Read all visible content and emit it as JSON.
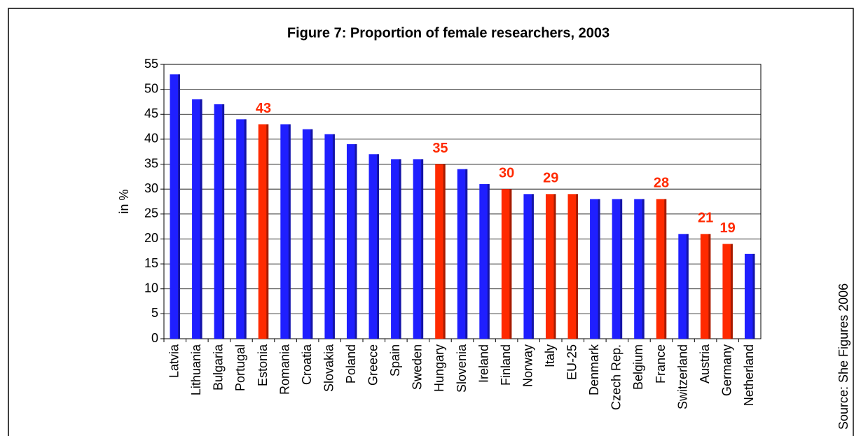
{
  "chart_data": {
    "type": "bar",
    "title": "Figure 7: Proportion of female researchers, 2003",
    "y_label": "in %",
    "source": "Source: She Figures 2006",
    "categories": [
      "Latvia",
      "Lithuania",
      "Bulgaria",
      "Portugal",
      "Estonia",
      "Romania",
      "Croatia",
      "Slovakia",
      "Poland",
      "Greece",
      "Spain",
      "Sweden",
      "Hungary",
      "Slovenia",
      "Ireland",
      "Finland",
      "Norway",
      "Italy",
      "EU-25",
      "Denmark",
      "Czech Rep.",
      "Belgium",
      "France",
      "Switzerland",
      "Austria",
      "Germany",
      "Netherland"
    ],
    "values": [
      53,
      48,
      47,
      44,
      43,
      43,
      42,
      41,
      39,
      37,
      36,
      36,
      35,
      34,
      31,
      30,
      29,
      29,
      29,
      28,
      28,
      28,
      28,
      21,
      21,
      19,
      17
    ],
    "value_labels": [
      null,
      null,
      null,
      null,
      "43",
      null,
      null,
      null,
      null,
      null,
      null,
      null,
      "35",
      null,
      null,
      "30",
      null,
      "29",
      null,
      null,
      null,
      null,
      "28",
      null,
      "21",
      "19",
      null
    ],
    "colors": [
      "#1f1fff",
      "#1f1fff",
      "#1f1fff",
      "#1f1fff",
      "#ff2a00",
      "#1f1fff",
      "#1f1fff",
      "#1f1fff",
      "#1f1fff",
      "#1f1fff",
      "#1f1fff",
      "#1f1fff",
      "#ff2a00",
      "#1f1fff",
      "#1f1fff",
      "#ff2a00",
      "#1f1fff",
      "#ff2a00",
      "#ff2a00",
      "#1f1fff",
      "#1f1fff",
      "#1f1fff",
      "#ff2a00",
      "#1f1fff",
      "#ff2a00",
      "#ff2a00",
      "#1f1fff"
    ],
    "ylim": [
      0,
      55
    ],
    "yticks": [
      0,
      5,
      10,
      15,
      20,
      25,
      30,
      35,
      40,
      45,
      50,
      55
    ],
    "grid": true
  }
}
